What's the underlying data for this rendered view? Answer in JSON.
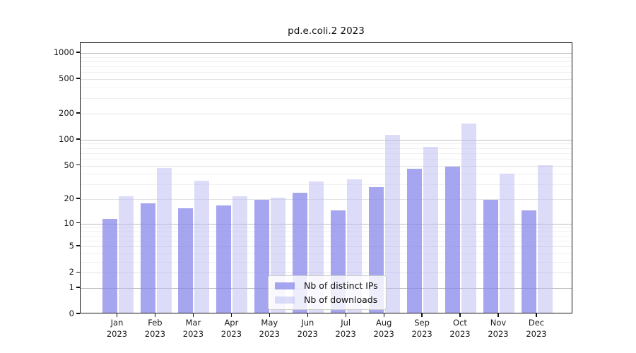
{
  "title": "pd.e.coli.2 2023",
  "legend": {
    "position": "lower center",
    "items": [
      {
        "label": "Nb of distinct IPs",
        "color": "#a6a6f0",
        "rgba": "rgba(136,136,235,0.75)"
      },
      {
        "label": "Nb of downloads",
        "color": "#dcdcf9",
        "rgba": "rgba(185,185,243,0.5)"
      }
    ]
  },
  "chart_data": {
    "type": "bar",
    "title": "pd.e.coli.2 2023",
    "categories": [
      "Jan 2023",
      "Feb 2023",
      "Mar 2023",
      "Apr 2023",
      "May 2023",
      "Jun 2023",
      "Jul 2023",
      "Aug 2023",
      "Sep 2023",
      "Oct 2023",
      "Nov 2023",
      "Dec 2023"
    ],
    "months": [
      "Jan",
      "Feb",
      "Mar",
      "Apr",
      "May",
      "Jun",
      "Jul",
      "Aug",
      "Sep",
      "Oct",
      "Nov",
      "Dec"
    ],
    "year": "2023",
    "series": [
      {
        "name": "Nb of distinct IPs",
        "color": "#a6a6f0",
        "rgba": "rgba(136,136,235,0.75)",
        "values": [
          11,
          17,
          15,
          16,
          19,
          23,
          14,
          27,
          44,
          47,
          19,
          14
        ]
      },
      {
        "name": "Nb of downloads",
        "color": "#dcdcf9",
        "rgba": "rgba(185,185,243,0.5)",
        "values": [
          21,
          45,
          32,
          21,
          20,
          31,
          33,
          110,
          80,
          147,
          39,
          49
        ]
      }
    ],
    "xlabel": "",
    "ylabel": "",
    "y_scale": "log1p",
    "ylim": [
      0,
      1285
    ],
    "y_ticks": [
      0,
      1,
      2,
      5,
      10,
      20,
      50,
      100,
      200,
      500,
      1000
    ],
    "y_minor_ticks": [
      3,
      4,
      6,
      7,
      8,
      9,
      30,
      40,
      60,
      70,
      80,
      90,
      300,
      400,
      600,
      700,
      800,
      900
    ],
    "grid": "on",
    "legend_position": "lower center",
    "colors": {
      "grid_decade": "#bdbdbd",
      "grid_labeled": "#e3e3e6",
      "grid_minor": "#f1f1f3",
      "axis": "#111111",
      "background": "#ffffff"
    }
  }
}
